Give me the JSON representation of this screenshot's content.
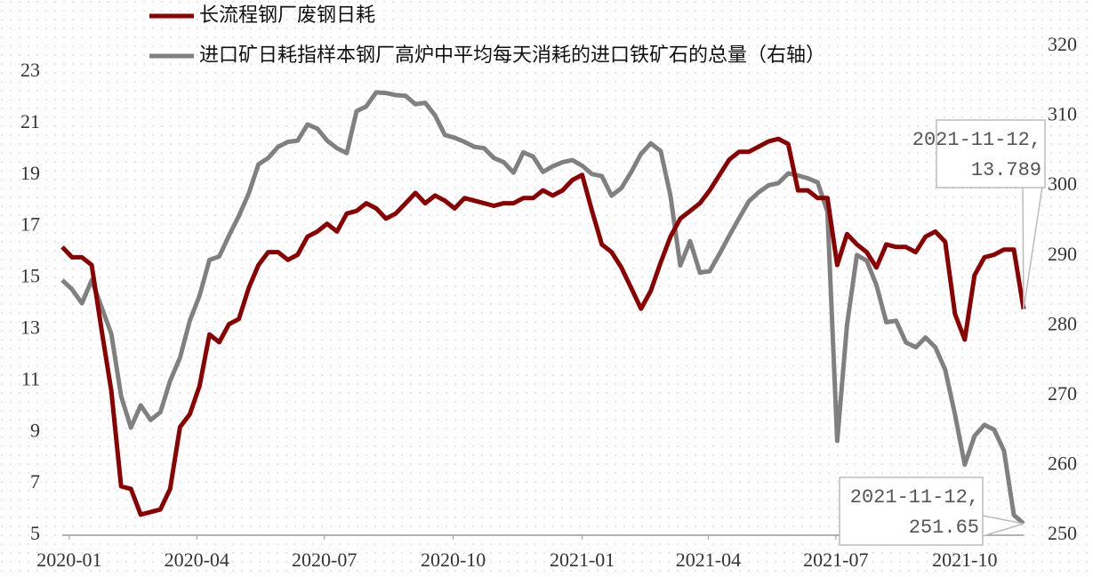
{
  "chart_data": {
    "type": "line",
    "x": [
      "2019-12-27",
      "2020-01-03",
      "2020-01-10",
      "2020-01-17",
      "2020-01-24",
      "2020-01-31",
      "2020-02-07",
      "2020-02-14",
      "2020-02-21",
      "2020-02-28",
      "2020-03-06",
      "2020-03-13",
      "2020-03-20",
      "2020-03-27",
      "2020-04-03",
      "2020-04-10",
      "2020-04-17",
      "2020-04-24",
      "2020-05-01",
      "2020-05-08",
      "2020-05-15",
      "2020-05-22",
      "2020-05-29",
      "2020-06-05",
      "2020-06-12",
      "2020-06-19",
      "2020-06-26",
      "2020-07-03",
      "2020-07-10",
      "2020-07-17",
      "2020-07-24",
      "2020-07-31",
      "2020-08-07",
      "2020-08-14",
      "2020-08-21",
      "2020-08-28",
      "2020-09-04",
      "2020-09-11",
      "2020-09-18",
      "2020-09-25",
      "2020-10-02",
      "2020-10-09",
      "2020-10-16",
      "2020-10-23",
      "2020-10-30",
      "2020-11-06",
      "2020-11-13",
      "2020-11-20",
      "2020-11-27",
      "2020-12-04",
      "2020-12-11",
      "2020-12-18",
      "2020-12-25",
      "2021-01-01",
      "2021-01-08",
      "2021-01-15",
      "2021-01-22",
      "2021-01-29",
      "2021-02-05",
      "2021-02-12",
      "2021-02-19",
      "2021-02-26",
      "2021-03-05",
      "2021-03-12",
      "2021-03-19",
      "2021-03-26",
      "2021-04-02",
      "2021-04-09",
      "2021-04-16",
      "2021-04-23",
      "2021-04-30",
      "2021-05-07",
      "2021-05-14",
      "2021-05-21",
      "2021-05-28",
      "2021-06-04",
      "2021-06-11",
      "2021-06-18",
      "2021-06-25",
      "2021-07-02",
      "2021-07-09",
      "2021-07-16",
      "2021-07-23",
      "2021-07-30",
      "2021-08-06",
      "2021-08-13",
      "2021-08-20",
      "2021-08-27",
      "2021-09-03",
      "2021-09-10",
      "2021-09-17",
      "2021-09-24",
      "2021-10-01",
      "2021-10-08",
      "2021-10-15",
      "2021-10-22",
      "2021-10-29",
      "2021-11-05",
      "2021-11-12"
    ],
    "series": [
      {
        "name": "长流程钢厂废钢日耗",
        "color": "#8b0000",
        "values": [
          16.2,
          15.8,
          15.8,
          15.5,
          13.0,
          10.6,
          6.9,
          6.8,
          5.8,
          5.9,
          6.0,
          6.8,
          9.2,
          9.7,
          10.8,
          12.8,
          12.5,
          13.2,
          13.4,
          14.6,
          15.5,
          16.0,
          16.0,
          15.7,
          15.9,
          16.6,
          16.8,
          17.1,
          16.8,
          17.5,
          17.6,
          17.9,
          17.7,
          17.3,
          17.5,
          17.9,
          18.3,
          17.9,
          18.2,
          18.0,
          17.7,
          18.1,
          18.0,
          17.9,
          17.8,
          17.9,
          17.9,
          18.1,
          18.1,
          18.4,
          18.2,
          18.4,
          18.8,
          19.0,
          17.6,
          16.3,
          16.0,
          15.4,
          14.6,
          13.8,
          14.5,
          15.6,
          16.6,
          17.3,
          17.6,
          17.9,
          18.4,
          19.0,
          19.6,
          19.9,
          19.9,
          20.1,
          20.3,
          20.4,
          20.2,
          18.4,
          18.4,
          18.1,
          18.1,
          15.5,
          16.7,
          16.3,
          16.0,
          15.4,
          16.3,
          16.2,
          16.2,
          16.0,
          16.6,
          16.8,
          16.4,
          13.6,
          12.6,
          15.1,
          15.8,
          15.9,
          16.1,
          16.1,
          13.789
        ]
      },
      {
        "name": "进口矿日耗指样本钢厂高炉中平均每天消耗的进口铁矿石的总量（右轴）",
        "color": "#808080",
        "axis": "y2",
        "values": [
          286.5,
          285.2,
          283.2,
          286.5,
          282.7,
          278.8,
          269.9,
          265.4,
          268.6,
          266.5,
          267.6,
          272.1,
          275.4,
          280.7,
          284.3,
          289.4,
          289.9,
          292.9,
          295.7,
          298.9,
          303.1,
          304.0,
          305.6,
          306.3,
          306.5,
          308.8,
          308.2,
          306.5,
          305.4,
          304.7,
          310.7,
          311.4,
          313.4,
          313.3,
          313.0,
          312.9,
          311.7,
          311.9,
          310.1,
          307.3,
          306.9,
          306.3,
          305.6,
          305.4,
          304.0,
          303.4,
          301.9,
          304.8,
          304.2,
          302.0,
          302.8,
          303.4,
          303.7,
          302.9,
          301.7,
          301.4,
          298.6,
          299.7,
          302.0,
          304.6,
          306.1,
          305.0,
          298.6,
          288.6,
          292.1,
          287.6,
          287.8,
          290.3,
          292.9,
          295.4,
          297.8,
          299.1,
          300.1,
          300.4,
          301.8,
          301.5,
          301.1,
          300.5,
          296.3,
          263.5,
          280.1,
          290.1,
          289.3,
          285.8,
          280.5,
          280.7,
          277.6,
          276.9,
          278.3,
          276.9,
          273.7,
          267.3,
          260.1,
          264.2,
          265.8,
          265.1,
          262.1,
          252.9,
          251.65
        ]
      }
    ],
    "xlim": [
      "2019-12-27",
      "2021-11-12"
    ],
    "xticks": [
      "2020-01",
      "2020-04",
      "2020-07",
      "2020-10",
      "2021-01",
      "2021-04",
      "2021-07",
      "2021-10"
    ],
    "ylim": [
      5,
      24
    ],
    "yticks": [
      5,
      7,
      9,
      11,
      13,
      15,
      17,
      19,
      21,
      23
    ],
    "y2lim": [
      250,
      320
    ],
    "y2ticks": [
      250,
      260,
      270,
      280,
      290,
      300,
      310,
      320
    ],
    "annotations": [
      [
        "2021-11-12,",
        "13.789"
      ],
      [
        "2021-11-12,",
        "251.65"
      ]
    ],
    "legend": "top-left"
  }
}
